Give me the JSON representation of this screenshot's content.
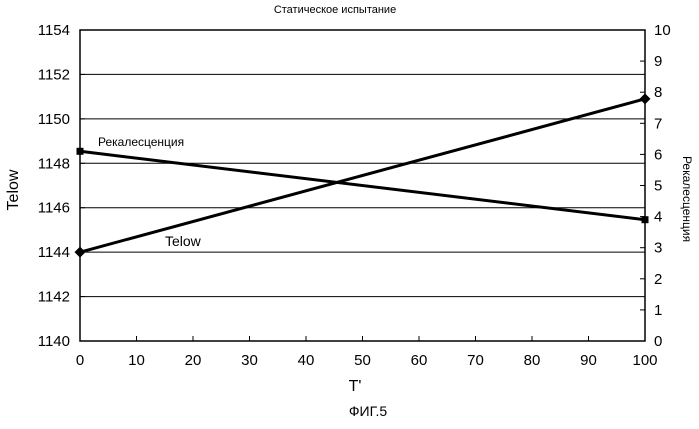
{
  "chart_data": {
    "type": "line",
    "title": "Статическое испытание",
    "xlabel": "T'",
    "ylabel_left": "Telow",
    "ylabel_right": "Рекалесценция",
    "caption": "ФИГ.5",
    "x_ticks": [
      "0",
      "10",
      "20",
      "30",
      "40",
      "50",
      "60",
      "70",
      "80",
      "90",
      "100"
    ],
    "y_left_ticks": [
      "1140",
      "1142",
      "1144",
      "1146",
      "1148",
      "1150",
      "1152",
      "1154"
    ],
    "y_right_ticks": [
      "0",
      "1",
      "2",
      "3",
      "4",
      "5",
      "6",
      "7",
      "8",
      "9",
      "10"
    ],
    "xlim": [
      0,
      100
    ],
    "ylim_left": [
      1140,
      1154
    ],
    "ylim_right": [
      0,
      10
    ],
    "grid": "horizontal",
    "series": [
      {
        "name": "Telow",
        "axis": "left",
        "marker": "diamond",
        "points": [
          [
            0,
            1144.0
          ],
          [
            100,
            1150.9
          ]
        ]
      },
      {
        "name": "Рекалесценция",
        "axis": "right",
        "marker": "square",
        "points": [
          [
            0,
            6.1
          ],
          [
            100,
            3.9
          ]
        ]
      }
    ]
  }
}
